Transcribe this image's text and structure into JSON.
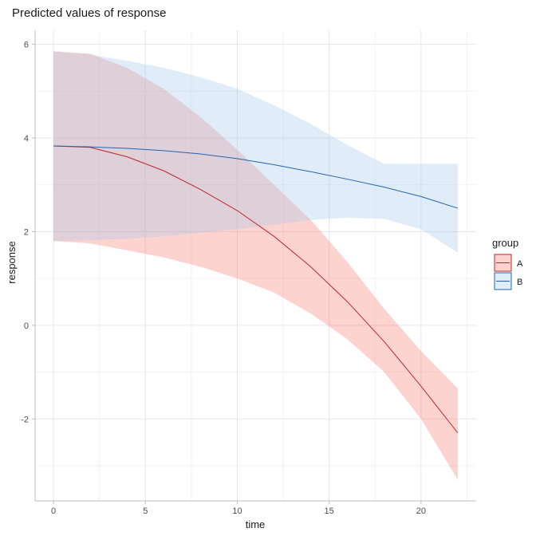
{
  "chart_data": {
    "type": "line",
    "title": "Predicted values of response",
    "xlabel": "time",
    "ylabel": "response",
    "xlim": [
      -1,
      23
    ],
    "ylim": [
      -3.75,
      6.3
    ],
    "x_ticks": [
      0,
      5,
      10,
      15,
      20
    ],
    "y_ticks": [
      -2,
      0,
      2,
      4,
      6
    ],
    "grid": true,
    "legend": {
      "title": "group",
      "placement": "right"
    },
    "series": [
      {
        "name": "A",
        "color": "#c0252c",
        "fill_color": "#f8766d",
        "x": [
          0,
          2,
          4,
          6,
          8,
          10,
          12,
          14,
          16,
          18,
          20,
          22
        ],
        "y": [
          3.83,
          3.8,
          3.6,
          3.3,
          2.9,
          2.45,
          1.9,
          1.25,
          0.5,
          -0.35,
          -1.3,
          -2.3
        ],
        "lower": [
          1.8,
          1.75,
          1.6,
          1.45,
          1.25,
          1.0,
          0.7,
          0.25,
          -0.3,
          -1.0,
          -2.0,
          -3.3
        ],
        "upper": [
          5.85,
          5.8,
          5.5,
          5.05,
          4.45,
          3.75,
          3.0,
          2.25,
          1.35,
          0.35,
          -0.55,
          -1.35
        ]
      },
      {
        "name": "B",
        "color": "#1f65b0",
        "fill_color": "#9ec6e8",
        "x": [
          0,
          2,
          4,
          6,
          8,
          10,
          12,
          14,
          16,
          18,
          20,
          22
        ],
        "y": [
          3.83,
          3.81,
          3.78,
          3.73,
          3.66,
          3.56,
          3.43,
          3.28,
          3.12,
          2.95,
          2.75,
          2.5
        ],
        "lower": [
          1.8,
          1.82,
          1.85,
          1.9,
          1.98,
          2.05,
          2.15,
          2.25,
          2.3,
          2.27,
          2.05,
          1.55
        ],
        "upper": [
          5.85,
          5.78,
          5.65,
          5.5,
          5.3,
          5.05,
          4.7,
          4.3,
          3.85,
          3.45,
          3.45,
          3.45
        ]
      }
    ]
  }
}
